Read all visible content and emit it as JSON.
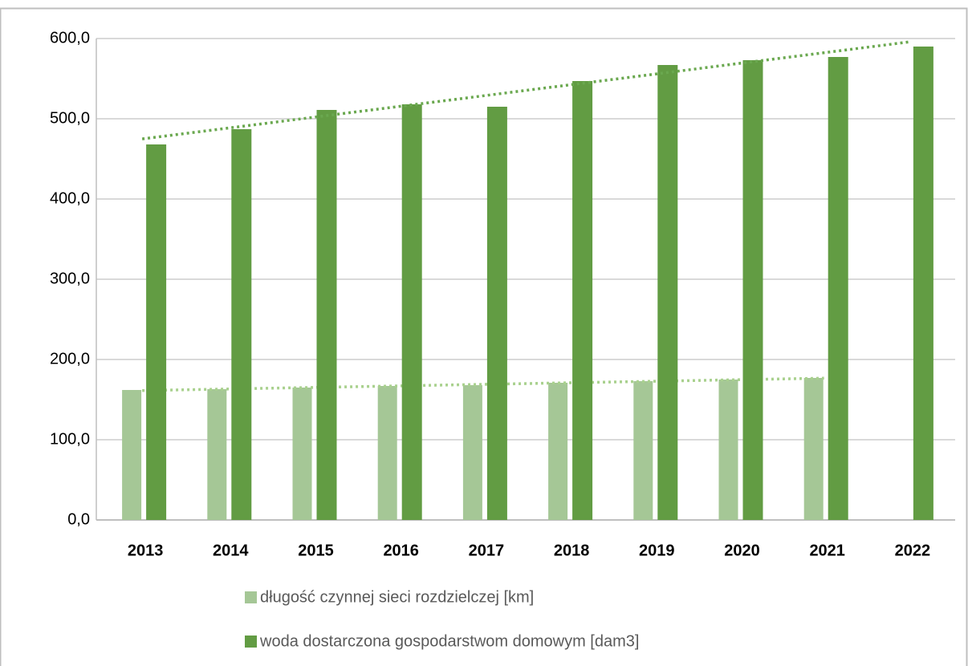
{
  "chart_data": {
    "type": "bar",
    "categories": [
      "2013",
      "2014",
      "2015",
      "2016",
      "2017",
      "2018",
      "2019",
      "2020",
      "2021",
      "2022"
    ],
    "series": [
      {
        "name": "długość czynnej sieci rozdzielczej [km]",
        "color": "#a5c796",
        "trend_color": "#a9d18e",
        "values": [
          162,
          163,
          165,
          167,
          168,
          171,
          173,
          175,
          177,
          null
        ]
      },
      {
        "name": "woda dostarczona gospodarstwom domowym [dam3]",
        "color": "#629c43",
        "trend_color": "#6aa84f",
        "values": [
          468,
          487,
          511,
          518,
          515,
          547,
          567,
          573,
          577,
          590
        ]
      }
    ],
    "ylim": [
      0,
      600
    ],
    "yticks": [
      {
        "value": 0,
        "label": "0,0"
      },
      {
        "value": 100,
        "label": "100,0"
      },
      {
        "value": 200,
        "label": "200,0"
      },
      {
        "value": 300,
        "label": "300,0"
      },
      {
        "value": 400,
        "label": "400,0"
      },
      {
        "value": 500,
        "label": "500,0"
      },
      {
        "value": 600,
        "label": "600,0"
      }
    ],
    "grid": true,
    "trendline": true,
    "legend": "bottom"
  }
}
